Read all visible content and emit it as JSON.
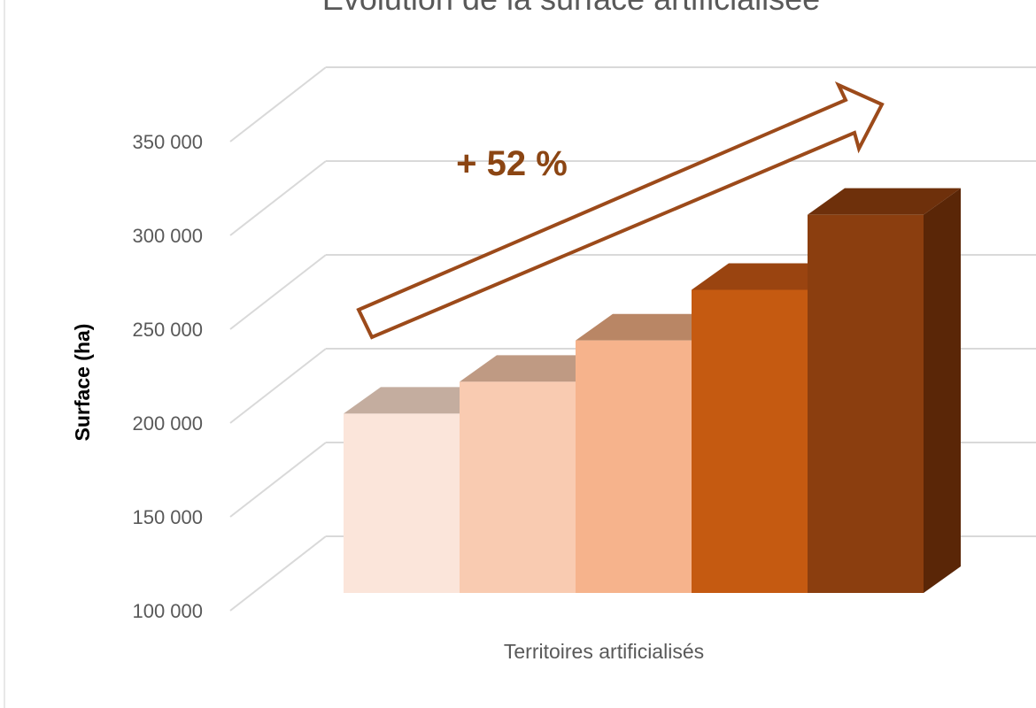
{
  "chart_data": {
    "type": "bar",
    "title": "Évolution de la surface artificialisée",
    "ylabel": "Surface (ha)",
    "xlabel": "",
    "categories": [
      "Territoires artificialisés"
    ],
    "series": [
      {
        "values": [
          205000
        ]
      },
      {
        "values": [
          222000
        ]
      },
      {
        "values": [
          244000
        ]
      },
      {
        "values": [
          271000
        ]
      },
      {
        "values": [
          311000
        ]
      }
    ],
    "ylim": [
      100000,
      350000
    ],
    "yticks": [
      100000,
      150000,
      200000,
      250000,
      300000,
      350000
    ],
    "ytick_labels": [
      "100 000",
      "150 000",
      "200 000",
      "250 000",
      "300 000",
      "350 000"
    ],
    "grid": true,
    "three_d": true,
    "annotation": "+ 52 %",
    "colors": {
      "bars": [
        {
          "front": "#fbe5da",
          "top": "#c4ad9f",
          "side": "#dcc3b4"
        },
        {
          "front": "#f9cbb1",
          "top": "#bf9a83",
          "side": "#d9b097"
        },
        {
          "front": "#f6b38c",
          "top": "#b98665",
          "side": "#d49a74"
        },
        {
          "front": "#c55a11",
          "top": "#9a4410",
          "side": "#8a3d0c"
        },
        {
          "front": "#8b3e0f",
          "top": "#6e300b",
          "side": "#5a2607"
        }
      ],
      "annotation": "#8b4513",
      "arrow": "#9c4a1a",
      "grid": "#d9d9d9",
      "text": "#595959"
    }
  }
}
